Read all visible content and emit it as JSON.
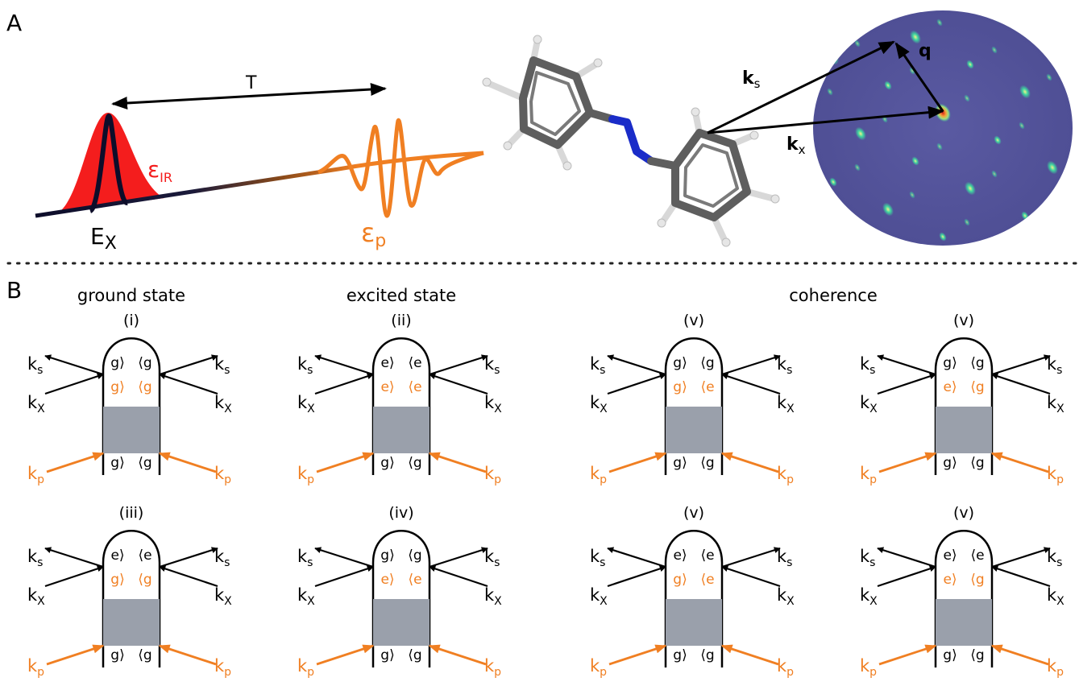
{
  "panel_a": {
    "letter": "A",
    "delay_label": "T",
    "xray_pulse_label": {
      "main": "E",
      "sub": "X"
    },
    "ir_pulse_label": {
      "main": "ε",
      "sub": "IR"
    },
    "probe_pulse_label": {
      "main": "ε",
      "sub": "p"
    },
    "scattered_label": {
      "main": "k",
      "sub": "s"
    },
    "incident_label": {
      "main": "k",
      "sub": "x"
    },
    "transfer_label": "q"
  },
  "panel_b": {
    "letter": "B",
    "section_titles": [
      "ground state",
      "excited state",
      "coherence"
    ],
    "diagrams": [
      {
        "id": "(i)",
        "top_ket": "g⟩",
        "top_bra": "⟨g",
        "mid_ket": "g⟩",
        "mid_bra": "⟨g",
        "bot_ket": "g⟩",
        "bot_bra": "⟨g"
      },
      {
        "id": "(ii)",
        "top_ket": "e⟩",
        "top_bra": "⟨e",
        "mid_ket": "e⟩",
        "mid_bra": "⟨e",
        "bot_ket": "g⟩",
        "bot_bra": "⟨g"
      },
      {
        "id": "(v)",
        "top_ket": "g⟩",
        "top_bra": "⟨g",
        "mid_ket": "g⟩",
        "mid_bra": "⟨e",
        "bot_ket": "g⟩",
        "bot_bra": "⟨g"
      },
      {
        "id": "(v)",
        "top_ket": "g⟩",
        "top_bra": "⟨g",
        "mid_ket": "e⟩",
        "mid_bra": "⟨g",
        "bot_ket": "g⟩",
        "bot_bra": "⟨g"
      },
      {
        "id": "(iii)",
        "top_ket": "e⟩",
        "top_bra": "⟨e",
        "mid_ket": "g⟩",
        "mid_bra": "⟨g",
        "bot_ket": "g⟩",
        "bot_bra": "⟨g"
      },
      {
        "id": "(iv)",
        "top_ket": "g⟩",
        "top_bra": "⟨g",
        "mid_ket": "e⟩",
        "mid_bra": "⟨e",
        "bot_ket": "g⟩",
        "bot_bra": "⟨g"
      },
      {
        "id": "(v)",
        "top_ket": "e⟩",
        "top_bra": "⟨e",
        "mid_ket": "g⟩",
        "mid_bra": "⟨e",
        "bot_ket": "g⟩",
        "bot_bra": "⟨g"
      },
      {
        "id": "(v)",
        "top_ket": "e⟩",
        "top_bra": "⟨e",
        "mid_ket": "e⟩",
        "mid_bra": "⟨g",
        "bot_ket": "g⟩",
        "bot_bra": "⟨g"
      }
    ],
    "wave_labels": {
      "ks": {
        "main": "k",
        "sub": "s"
      },
      "kx": {
        "main": "k",
        "sub": "X"
      },
      "kp": {
        "main": "k",
        "sub": "p"
      }
    }
  },
  "colors": {
    "orange": "#f07f22",
    "ir_red": "#f41d1d",
    "nitrogen_blue": "#1a2cc8",
    "carbon_gray": "#5e5e5e",
    "hydrogen_white": "#e6e6e6",
    "shaded_interaction": "#9aa0ab",
    "detector_background": "#54539a"
  },
  "icons": [
    "azobenzene-molecule",
    "diffraction-pattern"
  ]
}
